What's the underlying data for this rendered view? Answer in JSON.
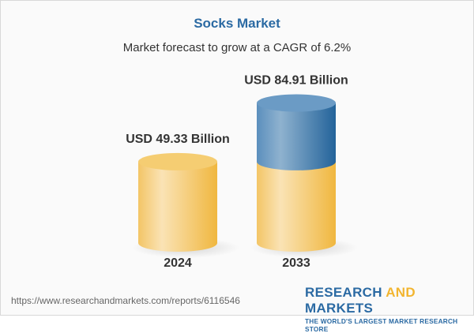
{
  "title": "Socks Market",
  "subtitle": "Market forecast to grow at a CAGR of 6.2%",
  "chart_data": {
    "type": "bar",
    "style": "3d-cylinder",
    "categories": [
      "2024",
      "2033"
    ],
    "values": [
      49.33,
      84.91
    ],
    "data_labels": [
      "USD 49.33 Billion",
      "USD 84.91 Billion"
    ],
    "unit": "USD Billion",
    "cagr": "6.2%",
    "grid": false,
    "colors": {
      "base": "#f2c15c",
      "growth": "#3f7db0"
    }
  },
  "footer": {
    "url": "https://www.researchandmarkets.com/reports/6116546",
    "logo_part1": "RESEARCH ",
    "logo_part2": "AND",
    "logo_part3": " MARKETS",
    "tagline": "THE WORLD'S LARGEST MARKET RESEARCH STORE"
  }
}
